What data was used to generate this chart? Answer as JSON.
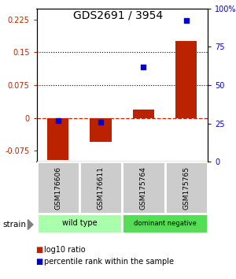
{
  "title": "GDS2691 / 3954",
  "samples": [
    "GSM176606",
    "GSM176611",
    "GSM175764",
    "GSM175765"
  ],
  "log10_ratio": [
    -0.095,
    -0.055,
    0.02,
    0.175
  ],
  "percentile_rank": [
    27,
    26,
    62,
    92
  ],
  "bar_color": "#bb2200",
  "dot_color": "#0000cc",
  "ylim_left": [
    -0.1,
    0.25
  ],
  "ylim_right": [
    0,
    100
  ],
  "yticks_left": [
    -0.075,
    0,
    0.075,
    0.15,
    0.225
  ],
  "yticks_right": [
    0,
    25,
    50,
    75,
    100
  ],
  "ytick_labels_left": [
    "-0.075",
    "0",
    "0.075",
    "0.15",
    "0.225"
  ],
  "ytick_labels_right": [
    "0",
    "25",
    "50",
    "75",
    "100%"
  ],
  "hlines": [
    0.075,
    0.15
  ],
  "groups": [
    {
      "label": "wild type",
      "samples": [
        0,
        1
      ],
      "color": "#aaffaa"
    },
    {
      "label": "dominant negative",
      "samples": [
        2,
        3
      ],
      "color": "#55dd55"
    }
  ],
  "strain_label": "strain",
  "legend_ratio_label": "log10 ratio",
  "legend_percentile_label": "percentile rank within the sample",
  "background_color": "#ffffff",
  "plot_bg_color": "#ffffff",
  "zero_line_color": "#cc2200",
  "zero_line_style": "--",
  "hline_color": "#000000",
  "hline_style": ":"
}
